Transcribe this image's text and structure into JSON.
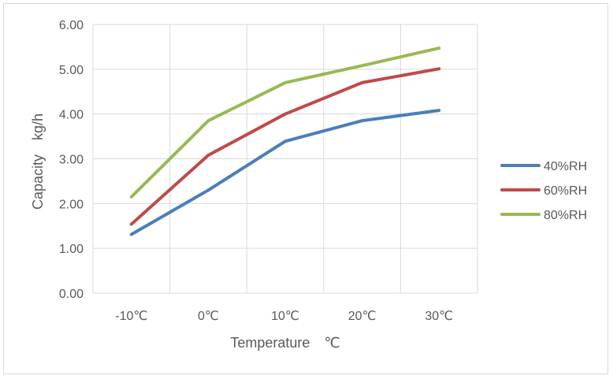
{
  "chart_data": {
    "type": "line",
    "title": "",
    "categories": [
      "-10℃",
      "0℃",
      "10℃",
      "20℃",
      "30℃"
    ],
    "xlabel": "Temperature　℃",
    "ylabel": "Capacity　kg/h",
    "ylim": [
      0,
      6
    ],
    "yticks": [
      "0.00",
      "1.00",
      "2.00",
      "3.00",
      "4.00",
      "5.00",
      "6.00"
    ],
    "grid": true,
    "legend_position": "right",
    "series": [
      {
        "name": "40%RH",
        "color": "#4a7ebb",
        "values": [
          1.31,
          2.3,
          3.39,
          3.85,
          4.08
        ]
      },
      {
        "name": "60%RH",
        "color": "#be4b48",
        "values": [
          1.54,
          3.08,
          4.0,
          4.7,
          5.01
        ]
      },
      {
        "name": "80%RH",
        "color": "#98b954",
        "values": [
          2.15,
          3.85,
          4.7,
          5.08,
          5.47
        ]
      }
    ]
  }
}
